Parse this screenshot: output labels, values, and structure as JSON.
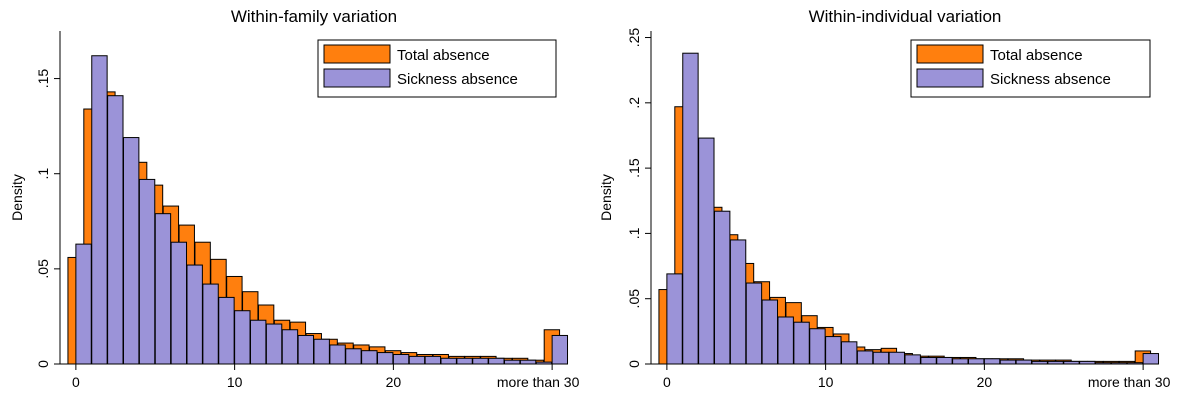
{
  "colors": {
    "total": "#ff7f0e",
    "sickness": "#9b93d8",
    "outline": "#000000",
    "background": "#ffffff"
  },
  "chart_data": [
    {
      "type": "bar",
      "title": "Within-family variation",
      "xlabel": "",
      "ylabel": "Density",
      "xlim": [
        -1,
        31
      ],
      "ylim": [
        0,
        0.175
      ],
      "x_ticks": [
        0,
        10,
        20
      ],
      "x_tick_labels": [
        "0",
        "10",
        "20"
      ],
      "x_end_label": "more than 30",
      "y_ticks": [
        0,
        0.05,
        0.1,
        0.15
      ],
      "y_tick_labels": [
        "0",
        ".05",
        ".1",
        ".15"
      ],
      "grid": false,
      "legend_position": "top-right",
      "x": [
        0,
        1,
        2,
        3,
        4,
        5,
        6,
        7,
        8,
        9,
        10,
        11,
        12,
        13,
        14,
        15,
        16,
        17,
        18,
        19,
        20,
        21,
        22,
        23,
        24,
        25,
        26,
        27,
        28,
        29,
        30
      ],
      "series": [
        {
          "name": "Total absence",
          "color_key": "total",
          "values": [
            0.056,
            0.134,
            0.143,
            0.117,
            0.106,
            0.094,
            0.083,
            0.073,
            0.064,
            0.055,
            0.046,
            0.038,
            0.031,
            0.023,
            0.022,
            0.016,
            0.013,
            0.011,
            0.01,
            0.009,
            0.007,
            0.006,
            0.005,
            0.005,
            0.004,
            0.004,
            0.004,
            0.003,
            0.003,
            0.002,
            0.018
          ]
        },
        {
          "name": "Sickness absence",
          "color_key": "sickness",
          "values": [
            0.063,
            0.162,
            0.141,
            0.119,
            0.097,
            0.079,
            0.064,
            0.052,
            0.042,
            0.035,
            0.028,
            0.023,
            0.021,
            0.018,
            0.015,
            0.013,
            0.01,
            0.008,
            0.007,
            0.006,
            0.005,
            0.004,
            0.004,
            0.003,
            0.003,
            0.003,
            0.003,
            0.002,
            0.002,
            0.001,
            0.015
          ]
        }
      ]
    },
    {
      "type": "bar",
      "title": "Within-individual variation",
      "xlabel": "",
      "ylabel": "Density",
      "xlim": [
        -1,
        31
      ],
      "ylim": [
        0,
        0.255
      ],
      "x_ticks": [
        0,
        10,
        20
      ],
      "x_tick_labels": [
        "0",
        "10",
        "20"
      ],
      "x_end_label": "more than 30",
      "y_ticks": [
        0,
        0.05,
        0.1,
        0.15,
        0.2,
        0.25
      ],
      "y_tick_labels": [
        "0",
        ".05",
        ".1",
        ".15",
        ".2",
        ".25"
      ],
      "grid": false,
      "legend_position": "top-right",
      "x": [
        0,
        1,
        2,
        3,
        4,
        5,
        6,
        7,
        8,
        9,
        10,
        11,
        12,
        13,
        14,
        15,
        16,
        17,
        18,
        19,
        20,
        21,
        22,
        23,
        24,
        25,
        26,
        27,
        28,
        29,
        30
      ],
      "series": [
        {
          "name": "Total absence",
          "color_key": "total",
          "values": [
            0.057,
            0.197,
            0.155,
            0.12,
            0.099,
            0.077,
            0.063,
            0.051,
            0.047,
            0.037,
            0.028,
            0.023,
            0.013,
            0.011,
            0.012,
            0.008,
            0.006,
            0.006,
            0.005,
            0.005,
            0.004,
            0.004,
            0.004,
            0.003,
            0.003,
            0.003,
            0.002,
            0.002,
            0.002,
            0.002,
            0.01
          ]
        },
        {
          "name": "Sickness absence",
          "color_key": "sickness",
          "values": [
            0.069,
            0.238,
            0.173,
            0.117,
            0.095,
            0.062,
            0.049,
            0.036,
            0.032,
            0.027,
            0.021,
            0.017,
            0.01,
            0.009,
            0.009,
            0.007,
            0.005,
            0.005,
            0.004,
            0.004,
            0.004,
            0.003,
            0.003,
            0.002,
            0.002,
            0.002,
            0.002,
            0.001,
            0.001,
            0.001,
            0.008
          ]
        }
      ]
    }
  ]
}
